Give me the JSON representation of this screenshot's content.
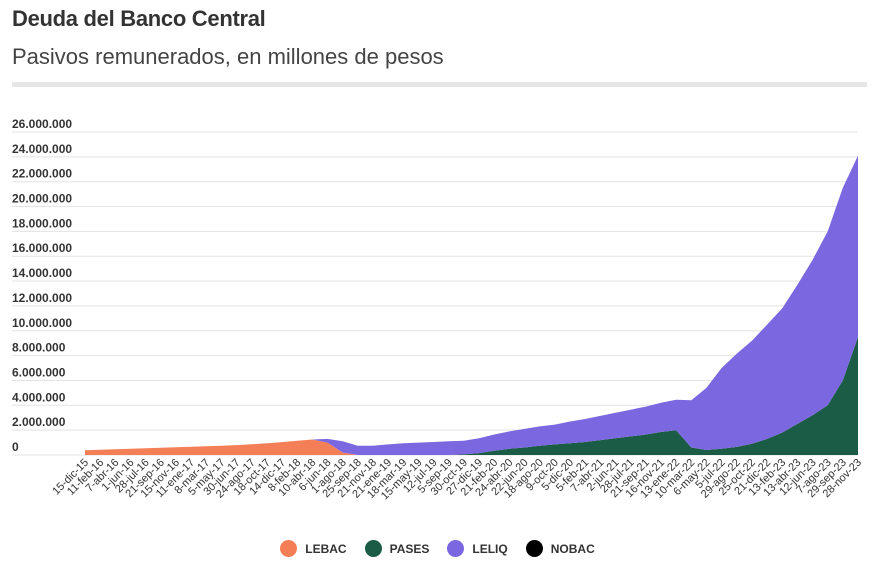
{
  "header": {
    "title": "Deuda del Banco Central",
    "subtitle": "Pasivos remunerados, en millones de pesos"
  },
  "chart_data": {
    "type": "area",
    "stacked": true,
    "title": "Deuda del Banco Central",
    "subtitle": "Pasivos remunerados, en millones de pesos",
    "xlabel": "",
    "ylabel": "",
    "ylim": [
      0,
      26000000
    ],
    "y_ticks": [
      0,
      2000000,
      4000000,
      6000000,
      8000000,
      10000000,
      12000000,
      14000000,
      16000000,
      18000000,
      20000000,
      22000000,
      24000000,
      26000000
    ],
    "y_tick_labels": [
      "0",
      "2.000.000",
      "4.000.000",
      "6.000.000",
      "8.000.000",
      "10.000.000",
      "12.000.000",
      "14.000.000",
      "16.000.000",
      "18.000.000",
      "20.000.000",
      "22.000.000",
      "24.000.000",
      "26.000.000"
    ],
    "x_tick_labels": [
      "15-dic-15",
      "11-feb-16",
      "7-abr-16",
      "1-jun-16",
      "28-jul-16",
      "21-sep-16",
      "15-nov-16",
      "11-ene-17",
      "8-mar-17",
      "5-may-17",
      "30-jun-17",
      "24-ago-17",
      "18-oct-17",
      "14-dic-17",
      "8-feb-18",
      "10-abr-18",
      "6-jun-18",
      "1-ago-18",
      "25-sep-18",
      "21-nov-18",
      "21-ene-19",
      "18-mar-19",
      "15-may-19",
      "12-jul-19",
      "5-sep-19",
      "30-oct-19",
      "27-dic-19",
      "21-feb-20",
      "24-abr-20",
      "22-jun-20",
      "18-ago-20",
      "9-oct-20",
      "5-dic-20",
      "5-feb-21",
      "7-abr-21",
      "2-jun-21",
      "28-jul-21",
      "21-sep-21",
      "16-nov-21",
      "13-ene-22",
      "10-mar-22",
      "6-may-22",
      "5-jul-22",
      "29-ago-22",
      "25-oct-22",
      "21-dic-22",
      "13-feb-23",
      "13-abr-23",
      "12-jun-23",
      "7-ago-23",
      "29-sep-23",
      "28-nov-23"
    ],
    "series": [
      {
        "name": "LEBAC",
        "color": "#f47f56",
        "values": [
          380000,
          420000,
          460000,
          500000,
          540000,
          580000,
          620000,
          660000,
          700000,
          740000,
          800000,
          860000,
          940000,
          1040000,
          1140000,
          1250000,
          1000000,
          200000,
          0,
          0,
          0,
          0,
          0,
          0,
          0,
          0,
          0,
          0,
          0,
          0,
          0,
          0,
          0,
          0,
          0,
          0,
          0,
          0,
          0,
          0,
          0,
          0,
          0,
          0,
          0,
          0,
          0,
          0,
          0,
          0,
          0,
          0
        ]
      },
      {
        "name": "PASES",
        "color": "#1a5c45",
        "values": [
          0,
          0,
          0,
          0,
          0,
          0,
          0,
          0,
          0,
          0,
          0,
          0,
          0,
          0,
          0,
          0,
          0,
          0,
          0,
          0,
          0,
          0,
          0,
          0,
          0,
          50000,
          150000,
          350000,
          500000,
          600000,
          750000,
          850000,
          950000,
          1050000,
          1200000,
          1350000,
          1500000,
          1650000,
          1850000,
          2000000,
          600000,
          400000,
          500000,
          650000,
          900000,
          1300000,
          1800000,
          2500000,
          3200000,
          4000000,
          6000000,
          9500000
        ]
      },
      {
        "name": "LELIQ",
        "color": "#7b67e0",
        "values": [
          0,
          0,
          0,
          0,
          0,
          0,
          0,
          0,
          0,
          0,
          0,
          0,
          0,
          0,
          0,
          0,
          300000,
          900000,
          750000,
          750000,
          850000,
          950000,
          1000000,
          1050000,
          1100000,
          1100000,
          1200000,
          1300000,
          1400000,
          1500000,
          1550000,
          1600000,
          1750000,
          1850000,
          1950000,
          2050000,
          2150000,
          2250000,
          2350000,
          2450000,
          3800000,
          5000000,
          6500000,
          7500000,
          8300000,
          9200000,
          10000000,
          11200000,
          12500000,
          14000000,
          15500000,
          14600000
        ]
      },
      {
        "name": "NOBAC",
        "color": "#000000",
        "values": [
          0,
          0,
          0,
          0,
          0,
          0,
          0,
          0,
          0,
          0,
          0,
          0,
          0,
          0,
          0,
          0,
          0,
          0,
          0,
          0,
          0,
          0,
          0,
          0,
          0,
          0,
          0,
          0,
          0,
          0,
          0,
          0,
          0,
          0,
          0,
          0,
          0,
          0,
          0,
          0,
          0,
          0,
          0,
          0,
          0,
          0,
          0,
          0,
          0,
          0,
          0,
          0
        ]
      }
    ],
    "grid": true,
    "legend": "bottom-center"
  }
}
